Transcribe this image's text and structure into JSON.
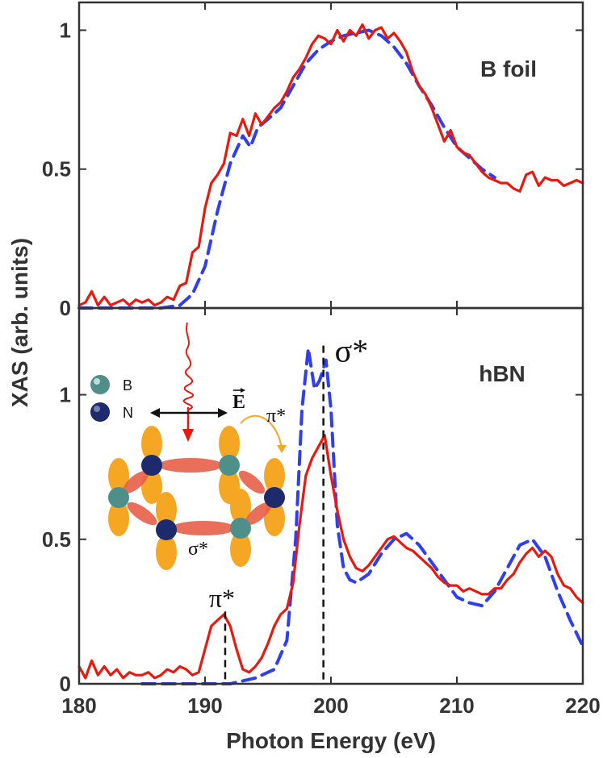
{
  "figure": {
    "ylabel": "XAS (arb. units)",
    "xlabel": "Photon Energy (eV)"
  },
  "colors": {
    "experiment": "#e8190f",
    "theory": "#2f3ff0",
    "marker": "#111111",
    "axis": "#333333",
    "lobe": "#f5a623",
    "bond": "#e8604a",
    "boron": "#4f8f8a",
    "nitrogen": "#1d2a6b"
  },
  "inset": {
    "legend_b": "B",
    "legend_n": "N",
    "field": "E",
    "pi_label": "π*",
    "sigma_label": "σ*"
  },
  "chart_data": [
    {
      "type": "line",
      "panel": "top",
      "title": "B foil",
      "xlabel": "Photon Energy (eV)",
      "ylabel": "XAS (arb. units)",
      "xlim": [
        180,
        220
      ],
      "ylim": [
        0,
        1.1
      ],
      "xticks": [
        180,
        190,
        200,
        210,
        220
      ],
      "yticks": [
        0,
        0.5,
        1
      ],
      "ytick_labels": [
        "0",
        "0.5",
        "1"
      ],
      "series": [
        {
          "style": "solid",
          "color": "#e8190f",
          "x": [
            180,
            180.5,
            181,
            181.5,
            182,
            182.5,
            183,
            183.5,
            184,
            184.5,
            185,
            185.5,
            186,
            186.5,
            187,
            187.5,
            188,
            188.5,
            189,
            189.5,
            190,
            190.5,
            191,
            191.5,
            192,
            192.5,
            193,
            193.5,
            194,
            194.5,
            195,
            195.5,
            196,
            196.5,
            197,
            197.5,
            198,
            198.5,
            199,
            199.5,
            200,
            200.5,
            201,
            201.5,
            202,
            202.5,
            203,
            203.5,
            204,
            204.5,
            205,
            205.5,
            206,
            206.5,
            207,
            207.5,
            208,
            208.5,
            209,
            209.5,
            210,
            210.5,
            211,
            211.5,
            212,
            212.5,
            213,
            213.5,
            214,
            214.5,
            215,
            215.5,
            216,
            216.5,
            217,
            217.5,
            218,
            218.5,
            219,
            219.5,
            220
          ],
          "values": [
            0.01,
            0.02,
            0.06,
            0.01,
            0.04,
            0.01,
            0.02,
            0.03,
            0.01,
            0.03,
            0.02,
            0.03,
            0.01,
            0.02,
            0.04,
            0.03,
            0.08,
            0.09,
            0.2,
            0.22,
            0.36,
            0.45,
            0.48,
            0.52,
            0.63,
            0.62,
            0.68,
            0.62,
            0.7,
            0.66,
            0.69,
            0.72,
            0.74,
            0.78,
            0.83,
            0.86,
            0.9,
            0.95,
            0.98,
            0.97,
            0.95,
            1.0,
            0.96,
            1.0,
            0.98,
            1.02,
            0.97,
            1.0,
            1.01,
            0.97,
            0.99,
            0.96,
            0.92,
            0.85,
            0.8,
            0.77,
            0.72,
            0.66,
            0.6,
            0.64,
            0.58,
            0.56,
            0.55,
            0.52,
            0.49,
            0.47,
            0.46,
            0.45,
            0.45,
            0.43,
            0.42,
            0.48,
            0.49,
            0.44,
            0.47,
            0.46,
            0.46,
            0.44,
            0.45,
            0.46,
            0.45
          ]
        },
        {
          "style": "dashed",
          "color": "#2f3ff0",
          "x": [
            180,
            185,
            186.5,
            188,
            189,
            190,
            191,
            192,
            193,
            193.6,
            194.2,
            195,
            196,
            197,
            198,
            199,
            200,
            201,
            202,
            203,
            204,
            205,
            206,
            207,
            208,
            209,
            210,
            211,
            212,
            213
          ],
          "values": [
            0.0,
            0.0,
            0.0,
            0.01,
            0.05,
            0.15,
            0.35,
            0.52,
            0.62,
            0.58,
            0.65,
            0.68,
            0.72,
            0.8,
            0.88,
            0.93,
            0.96,
            0.98,
            0.99,
            1.0,
            0.98,
            0.94,
            0.88,
            0.8,
            0.73,
            0.65,
            0.58,
            0.54,
            0.5,
            0.47
          ]
        }
      ]
    },
    {
      "type": "line",
      "panel": "bottom",
      "title": "hBN",
      "xlabel": "Photon Energy (eV)",
      "ylabel": "XAS (arb. units)",
      "xlim": [
        180,
        220
      ],
      "ylim": [
        0,
        1.3
      ],
      "xticks": [
        180,
        190,
        200,
        210,
        220
      ],
      "yticks": [
        0,
        0.5,
        1
      ],
      "ytick_labels": [
        "0",
        "0.5",
        "1"
      ],
      "annotations": [
        {
          "label": "π*",
          "x": 191.6,
          "y": 0.25
        },
        {
          "label": "σ*",
          "x": 199.4,
          "y": 1.17
        }
      ],
      "series": [
        {
          "style": "solid",
          "color": "#e8190f",
          "x": [
            180,
            180.5,
            181,
            181.5,
            182,
            182.5,
            183,
            183.5,
            184,
            184.5,
            185,
            185.5,
            186,
            186.5,
            187,
            187.5,
            188,
            188.5,
            189,
            189.5,
            190,
            190.5,
            191,
            191.5,
            192,
            192.5,
            193,
            193.5,
            194,
            194.5,
            195,
            195.5,
            196,
            196.5,
            197,
            197.5,
            198,
            198.5,
            199,
            199.5,
            200,
            200.5,
            201,
            201.5,
            202,
            202.5,
            203,
            203.5,
            204,
            204.5,
            205,
            205.5,
            206,
            206.5,
            207,
            207.5,
            208,
            208.5,
            209,
            209.5,
            210,
            210.5,
            211,
            211.5,
            212,
            212.5,
            213,
            213.5,
            214,
            214.5,
            215,
            215.5,
            216,
            216.5,
            217,
            217.5,
            218,
            218.5,
            219,
            219.5,
            220
          ],
          "values": [
            0.06,
            0.02,
            0.08,
            0.03,
            0.06,
            0.03,
            0.05,
            0.02,
            0.04,
            0.03,
            0.03,
            0.04,
            0.02,
            0.03,
            0.05,
            0.04,
            0.06,
            0.05,
            0.03,
            0.04,
            0.12,
            0.2,
            0.22,
            0.24,
            0.2,
            0.12,
            0.05,
            0.04,
            0.06,
            0.09,
            0.14,
            0.2,
            0.24,
            0.26,
            0.35,
            0.55,
            0.72,
            0.78,
            0.82,
            0.86,
            0.72,
            0.6,
            0.5,
            0.44,
            0.4,
            0.39,
            0.41,
            0.44,
            0.47,
            0.5,
            0.51,
            0.49,
            0.47,
            0.46,
            0.44,
            0.42,
            0.4,
            0.37,
            0.35,
            0.34,
            0.34,
            0.32,
            0.33,
            0.32,
            0.31,
            0.31,
            0.33,
            0.33,
            0.36,
            0.38,
            0.42,
            0.45,
            0.47,
            0.44,
            0.46,
            0.44,
            0.38,
            0.34,
            0.33,
            0.3,
            0.28
          ]
        },
        {
          "style": "dashed",
          "color": "#2f3ff0",
          "x": [
            185,
            190,
            192,
            194,
            195.5,
            196.5,
            197.2,
            197.7,
            198.2,
            198.7,
            199.1,
            199.6,
            200,
            200.5,
            201,
            201.5,
            202,
            203,
            204,
            205,
            206,
            207,
            208,
            209,
            210,
            211,
            212,
            213,
            214,
            215,
            216,
            217,
            218,
            219,
            220
          ],
          "values": [
            0.0,
            0.0,
            0.0,
            0.02,
            0.05,
            0.15,
            0.5,
            0.95,
            1.16,
            1.02,
            1.05,
            1.12,
            0.95,
            0.55,
            0.4,
            0.36,
            0.35,
            0.38,
            0.45,
            0.5,
            0.52,
            0.48,
            0.42,
            0.36,
            0.3,
            0.28,
            0.27,
            0.32,
            0.4,
            0.48,
            0.5,
            0.44,
            0.32,
            0.22,
            0.13
          ]
        }
      ]
    }
  ]
}
